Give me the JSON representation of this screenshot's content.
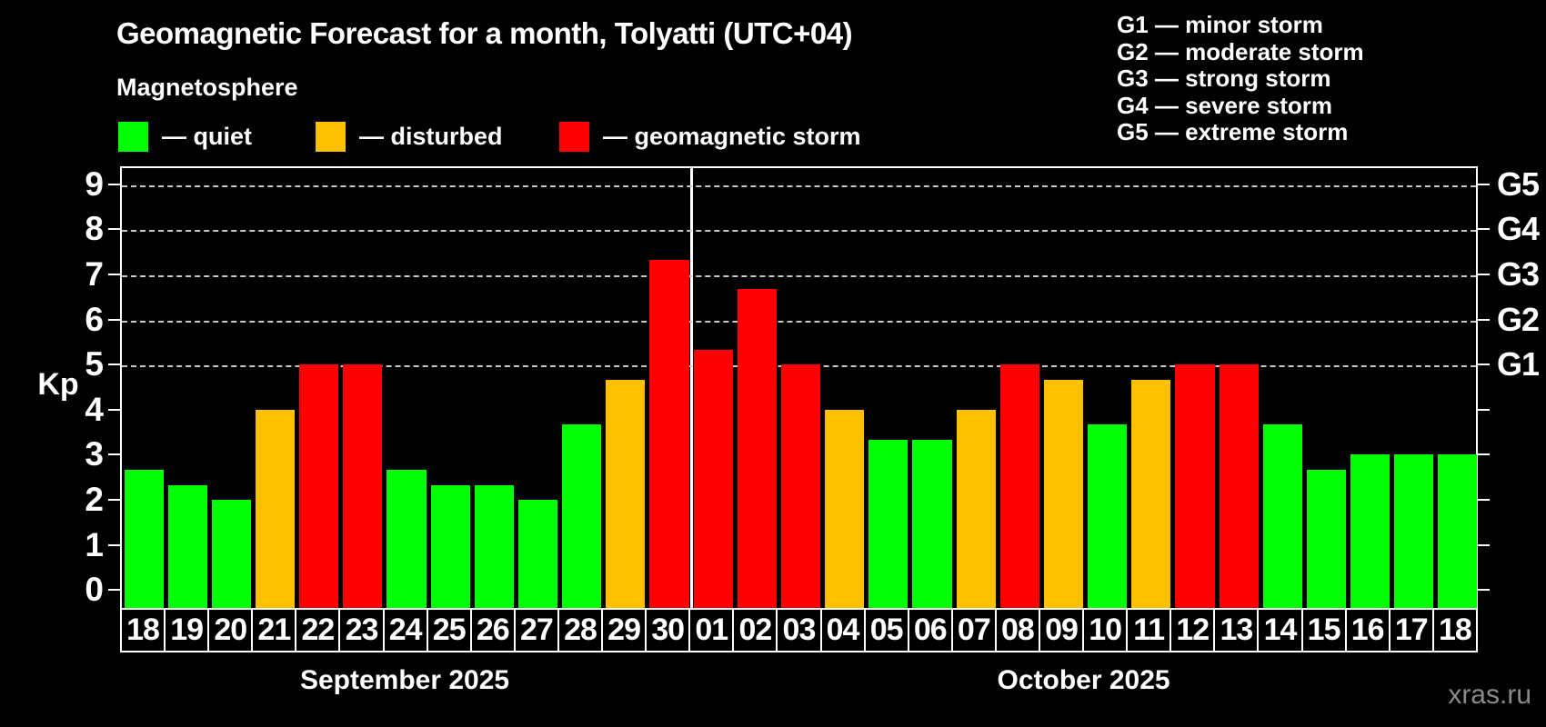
{
  "title": "Geomagnetic Forecast for a month, Tolyatti (UTC+04)",
  "subtitle": "Magnetosphere",
  "legend": {
    "quiet": {
      "label": "— quiet",
      "color": "#00ff00"
    },
    "disturbed": {
      "label": "— disturbed",
      "color": "#ffc000"
    },
    "storm": {
      "label": "— geomagnetic storm",
      "color": "#ff0000"
    }
  },
  "g_scale": [
    {
      "label": "G1 — minor storm"
    },
    {
      "label": "G2 — moderate storm"
    },
    {
      "label": "G3 — strong storm"
    },
    {
      "label": "G4 — severe storm"
    },
    {
      "label": "G5 — extreme storm"
    }
  ],
  "axes": {
    "y_label": "Kp",
    "y_ticks": [
      0,
      1,
      2,
      3,
      4,
      5,
      6,
      7,
      8,
      9
    ]
  },
  "watermark": "xras.ru",
  "chart_data": {
    "type": "bar",
    "title": "Geomagnetic Forecast for a month, Tolyatti (UTC+04)",
    "xlabel": "",
    "ylabel": "Kp",
    "ylim": [
      0,
      9
    ],
    "y_axis_drawn_range": [
      -0.4,
      9.4
    ],
    "gridline_levels": [
      5,
      6,
      7,
      8,
      9
    ],
    "grid": "dashed horizontal at Kp 5-9 only",
    "legend_position": "top-left",
    "right_axis_labels": [
      {
        "label": "G1",
        "kp": 5
      },
      {
        "label": "G2",
        "kp": 6
      },
      {
        "label": "G3",
        "kp": 7
      },
      {
        "label": "G4",
        "kp": 8
      },
      {
        "label": "G5",
        "kp": 9
      }
    ],
    "state_colors": {
      "quiet": "#00ff00",
      "disturbed": "#ffc000",
      "storm": "#ff0000"
    },
    "months": [
      {
        "label": "September 2025",
        "days": [
          {
            "day": "18",
            "kp": 2.67,
            "state": "quiet"
          },
          {
            "day": "19",
            "kp": 2.33,
            "state": "quiet"
          },
          {
            "day": "20",
            "kp": 2.0,
            "state": "quiet"
          },
          {
            "day": "21",
            "kp": 4.0,
            "state": "disturbed"
          },
          {
            "day": "22",
            "kp": 5.0,
            "state": "storm"
          },
          {
            "day": "23",
            "kp": 5.0,
            "state": "storm"
          },
          {
            "day": "24",
            "kp": 2.67,
            "state": "quiet"
          },
          {
            "day": "25",
            "kp": 2.33,
            "state": "quiet"
          },
          {
            "day": "26",
            "kp": 2.33,
            "state": "quiet"
          },
          {
            "day": "27",
            "kp": 2.0,
            "state": "quiet"
          },
          {
            "day": "28",
            "kp": 3.67,
            "state": "quiet"
          },
          {
            "day": "29",
            "kp": 4.67,
            "state": "disturbed"
          },
          {
            "day": "30",
            "kp": 7.33,
            "state": "storm"
          }
        ]
      },
      {
        "label": "October 2025",
        "days": [
          {
            "day": "01",
            "kp": 5.33,
            "state": "storm"
          },
          {
            "day": "02",
            "kp": 6.67,
            "state": "storm"
          },
          {
            "day": "03",
            "kp": 5.0,
            "state": "storm"
          },
          {
            "day": "04",
            "kp": 4.0,
            "state": "disturbed"
          },
          {
            "day": "05",
            "kp": 3.33,
            "state": "quiet"
          },
          {
            "day": "06",
            "kp": 3.33,
            "state": "quiet"
          },
          {
            "day": "07",
            "kp": 4.0,
            "state": "disturbed"
          },
          {
            "day": "08",
            "kp": 5.0,
            "state": "storm"
          },
          {
            "day": "09",
            "kp": 4.67,
            "state": "disturbed"
          },
          {
            "day": "10",
            "kp": 3.67,
            "state": "quiet"
          },
          {
            "day": "11",
            "kp": 4.67,
            "state": "disturbed"
          },
          {
            "day": "12",
            "kp": 5.0,
            "state": "storm"
          },
          {
            "day": "13",
            "kp": 5.0,
            "state": "storm"
          },
          {
            "day": "14",
            "kp": 3.67,
            "state": "quiet"
          },
          {
            "day": "15",
            "kp": 2.67,
            "state": "quiet"
          },
          {
            "day": "16",
            "kp": 3.0,
            "state": "quiet"
          },
          {
            "day": "17",
            "kp": 3.0,
            "state": "quiet"
          },
          {
            "day": "18",
            "kp": 3.0,
            "state": "quiet"
          }
        ]
      }
    ]
  }
}
